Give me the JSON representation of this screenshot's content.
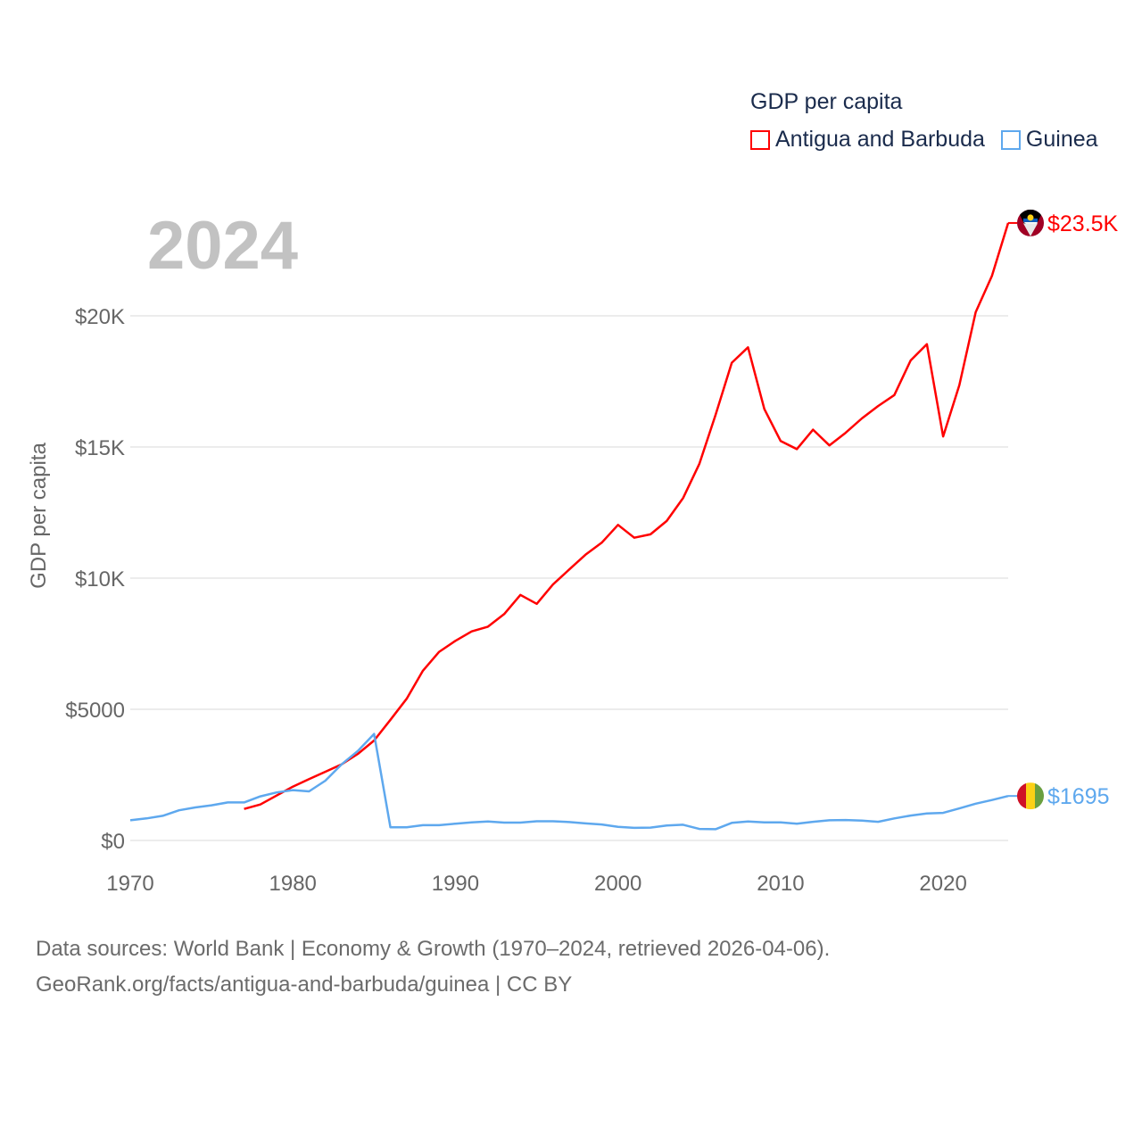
{
  "chart_data": {
    "type": "line",
    "title": "2024",
    "ylabel": "GDP per capita",
    "xlabel": "",
    "xlim": [
      1970,
      2024
    ],
    "ylim": [
      0,
      23500
    ],
    "grid": true,
    "x_ticks": [
      1970,
      1980,
      1990,
      2000,
      2010,
      2020
    ],
    "x_tick_labels": [
      "1970",
      "1980",
      "1990",
      "2000",
      "2010",
      "2020"
    ],
    "y_ticks": [
      0,
      5000,
      10000,
      15000,
      20000
    ],
    "y_tick_labels": [
      "$0",
      "$5000",
      "$10K",
      "$15K",
      "$20K"
    ],
    "legend": {
      "title": "GDP per capita",
      "placement": "top-right"
    },
    "series": [
      {
        "name": "Antigua and Barbuda",
        "color": "#ff0000",
        "end_label": "$23.5K",
        "flag": "antigua-and-barbuda-flag",
        "x": [
          1977,
          1978,
          1979,
          1980,
          1981,
          1982,
          1983,
          1984,
          1985,
          1986,
          1987,
          1988,
          1989,
          1990,
          1991,
          1992,
          1993,
          1994,
          1995,
          1996,
          1997,
          1998,
          1999,
          2000,
          2001,
          2002,
          2003,
          2004,
          2005,
          2006,
          2007,
          2008,
          2009,
          2010,
          2011,
          2012,
          2013,
          2014,
          2015,
          2016,
          2017,
          2018,
          2019,
          2020,
          2021,
          2022,
          2023,
          2024
        ],
        "values": [
          1200,
          1370,
          1710,
          2050,
          2340,
          2620,
          2900,
          3300,
          3810,
          4600,
          5400,
          6470,
          7190,
          7610,
          7970,
          8150,
          8630,
          9360,
          9020,
          9760,
          10330,
          10890,
          11350,
          12030,
          11540,
          11670,
          12180,
          13050,
          14350,
          16220,
          18210,
          18800,
          16450,
          15230,
          14920,
          15660,
          15060,
          15540,
          16090,
          16560,
          16980,
          18300,
          18920,
          15400,
          17360,
          20140,
          21520,
          23540
        ]
      },
      {
        "name": "Guinea",
        "color": "#5ea8ee",
        "end_label": "$1695",
        "flag": "guinea-flag",
        "x": [
          1970,
          1971,
          1972,
          1973,
          1974,
          1975,
          1976,
          1977,
          1978,
          1979,
          1980,
          1981,
          1982,
          1983,
          1984,
          1985,
          1986,
          1987,
          1988,
          1989,
          1990,
          1991,
          1992,
          1993,
          1994,
          1995,
          1996,
          1997,
          1998,
          1999,
          2000,
          2001,
          2002,
          2003,
          2004,
          2005,
          2006,
          2007,
          2008,
          2009,
          2010,
          2011,
          2012,
          2013,
          2014,
          2015,
          2016,
          2017,
          2018,
          2019,
          2020,
          2021,
          2022,
          2023,
          2024
        ],
        "values": [
          770,
          840,
          940,
          1150,
          1260,
          1340,
          1450,
          1450,
          1680,
          1830,
          1920,
          1870,
          2280,
          2900,
          3410,
          4060,
          500,
          500,
          580,
          580,
          640,
          690,
          720,
          680,
          680,
          730,
          730,
          700,
          650,
          610,
          520,
          480,
          490,
          570,
          600,
          440,
          430,
          670,
          720,
          690,
          690,
          640,
          710,
          770,
          780,
          760,
          710,
          840,
          950,
          1030,
          1050,
          1220,
          1400,
          1540,
          1695
        ]
      }
    ]
  },
  "footer": {
    "line1": "Data sources: World Bank | Economy & Growth (1970–2024, retrieved 2026-04-06).",
    "line2": "GeoRank.org/facts/antigua-and-barbuda/guinea | CC BY"
  }
}
